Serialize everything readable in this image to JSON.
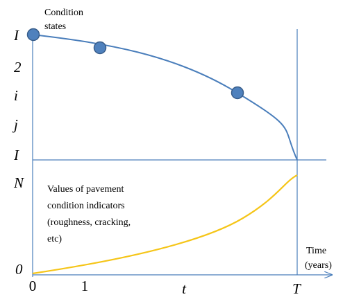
{
  "condition_label": [
    "Condition",
    "states"
  ],
  "y_labels_top": [
    "I",
    "2",
    "i",
    "j",
    "I"
  ],
  "y_labels_bottom": [
    "N",
    "0"
  ],
  "x_labels": [
    "0",
    "1",
    "t",
    "T"
  ],
  "indicator_label": [
    "Values of pavement",
    "condition indicators",
    "(roughness, cracking,",
    "etc)"
  ],
  "time_label": [
    "Time",
    "(years)"
  ]
}
